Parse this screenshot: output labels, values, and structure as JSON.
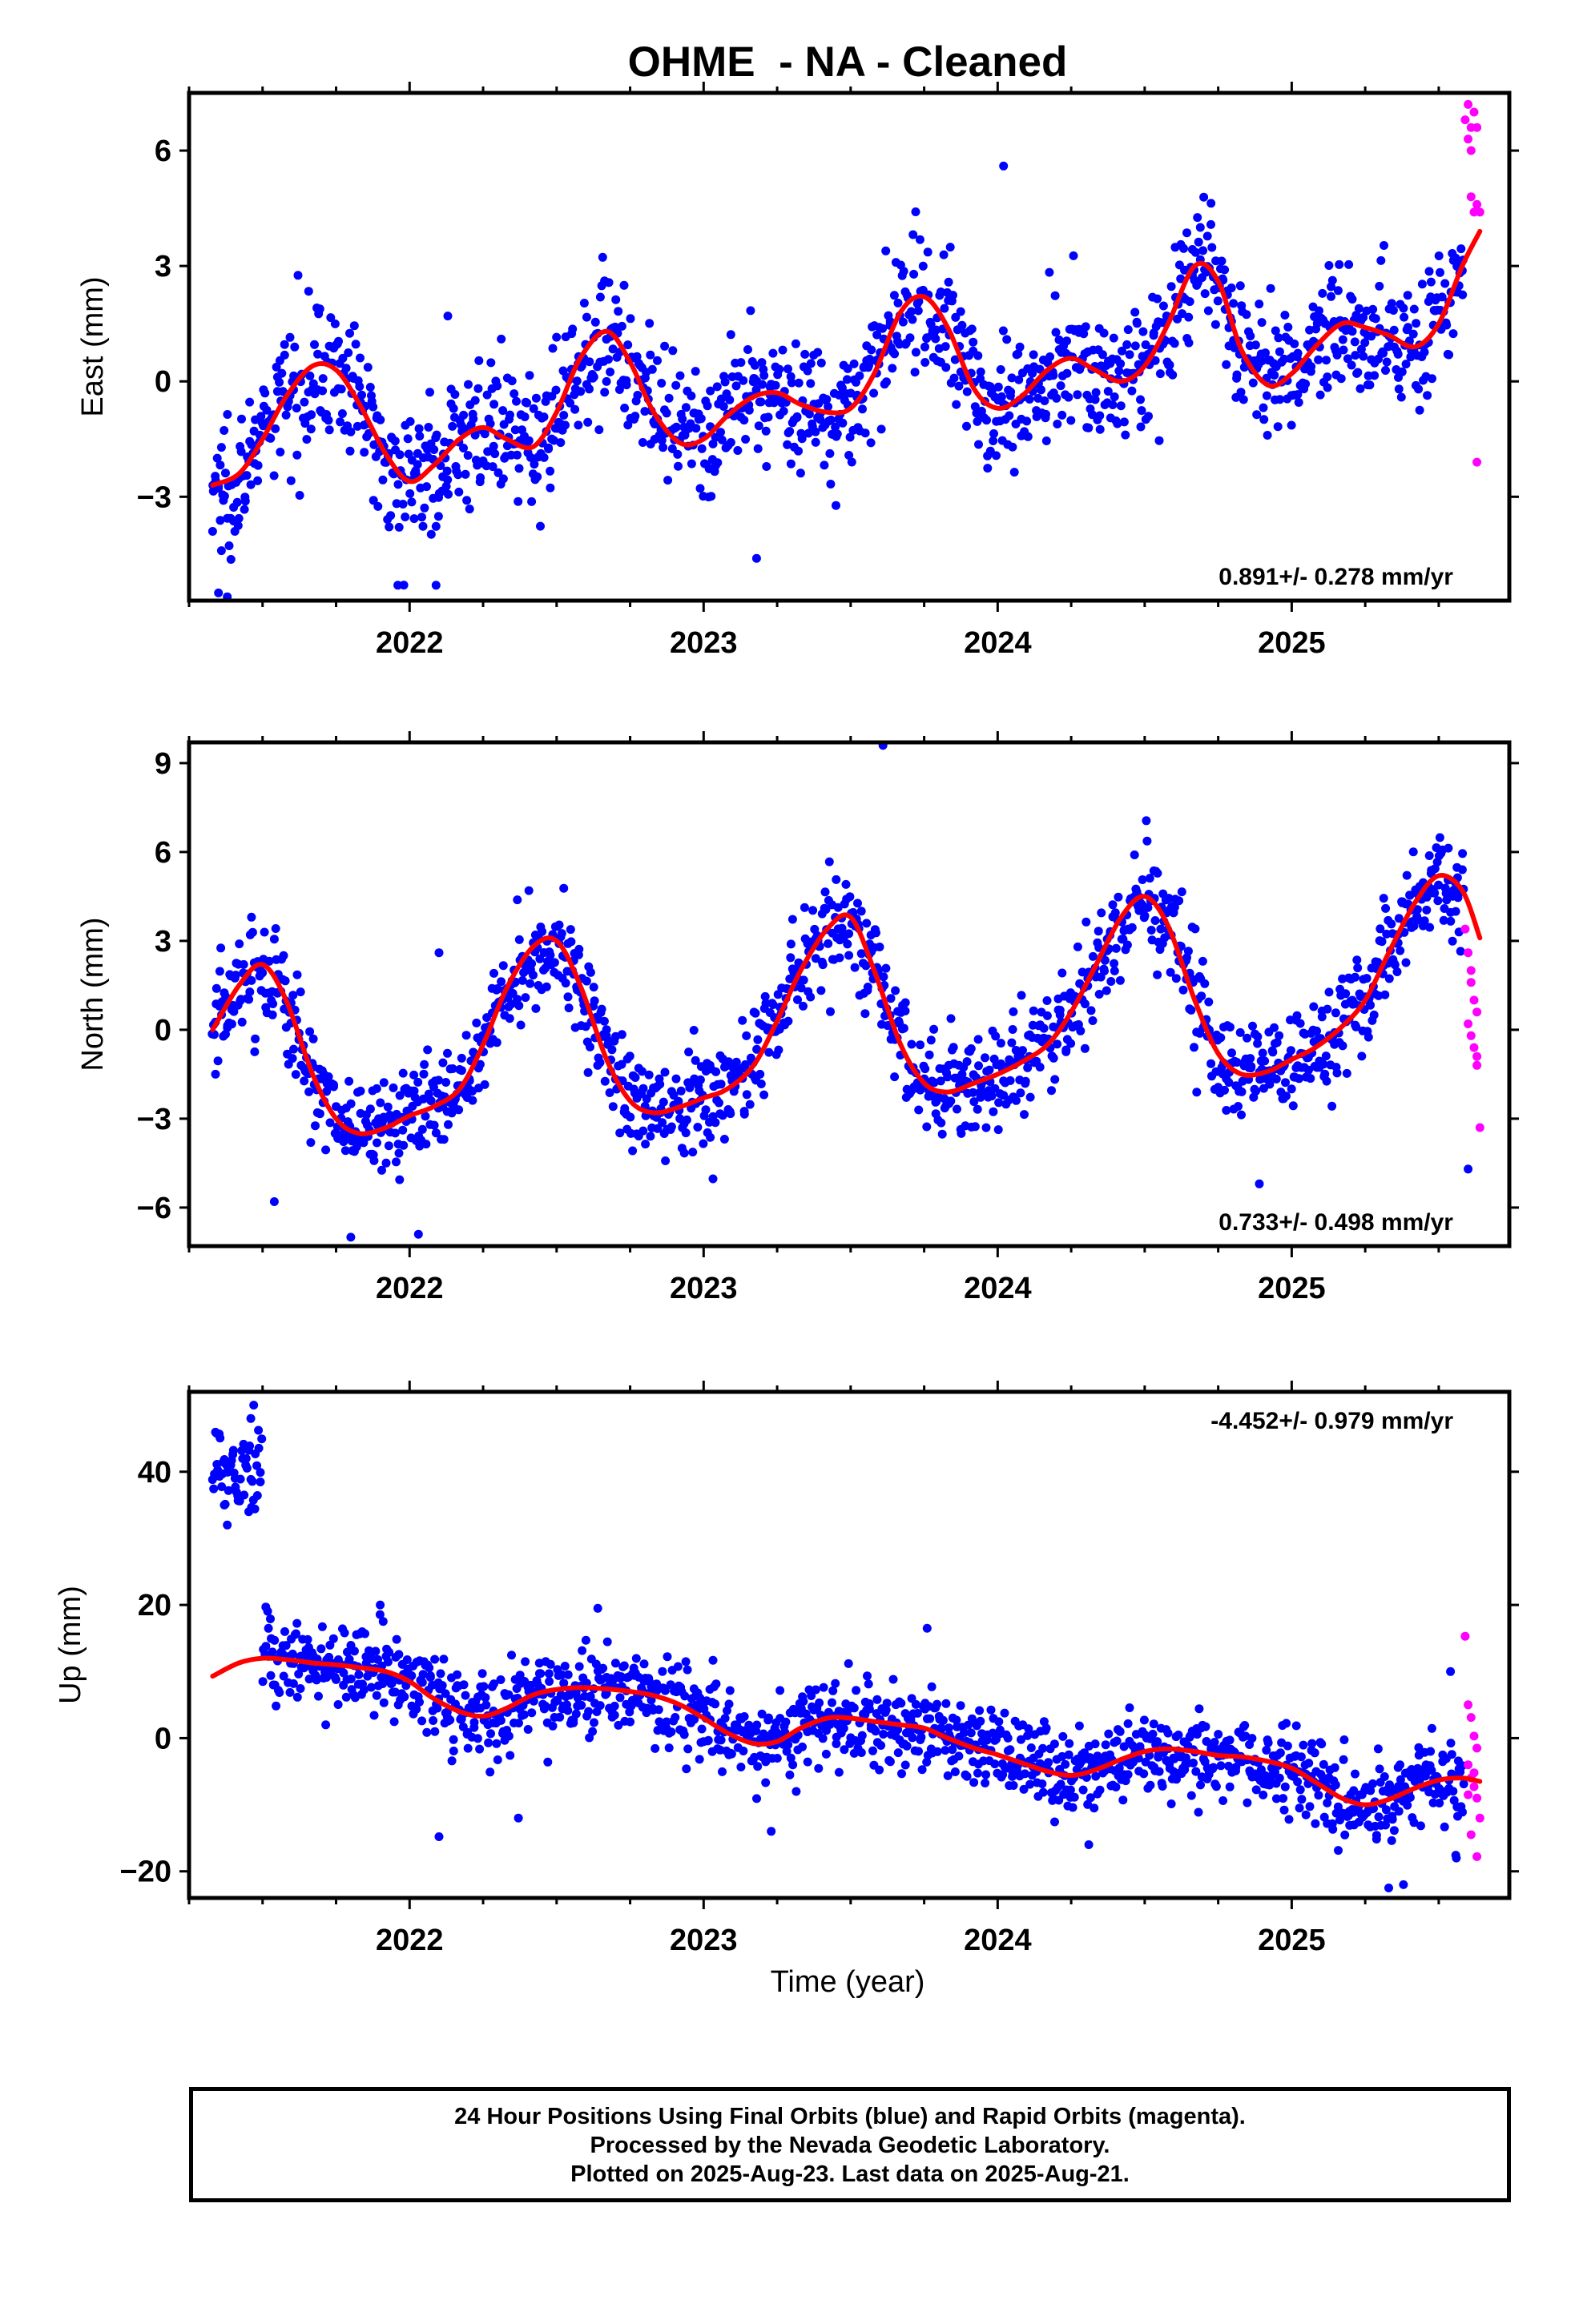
{
  "title": "OHME  - NA - Cleaned",
  "xlabel": "Time (year)",
  "footer": {
    "line1": "24 Hour Positions Using Final Orbits (blue) and Rapid Orbits (magenta).",
    "line2": "Processed by the Nevada Geodetic Laboratory.",
    "line3": "Plotted on 2025-Aug-23. Last data on 2025-Aug-21."
  },
  "colors": {
    "final": "#0000ff",
    "rapid": "#ff00ff",
    "model": "#ff0000",
    "frame": "#000000"
  },
  "chart_data": [
    {
      "type": "scatter",
      "component": "East",
      "ylabel": "East (mm)",
      "rate_text": "0.891+/- 0.278 mm/yr",
      "rate_position": "bottom-right",
      "xlim": [
        2021.25,
        2025.74
      ],
      "ylim": [
        -5.7,
        7.5
      ],
      "yticks": [
        -3,
        0,
        3,
        6
      ],
      "xticks": [
        2022,
        2023,
        2024,
        2025
      ],
      "scatter_noise": 0.85,
      "model": {
        "name": "",
        "x": [
          2021.33,
          2021.42,
          2021.5,
          2021.58,
          2021.67,
          2021.75,
          2021.83,
          2021.92,
          2022.0,
          2022.08,
          2022.17,
          2022.25,
          2022.33,
          2022.42,
          2022.5,
          2022.58,
          2022.67,
          2022.75,
          2022.83,
          2022.92,
          2023.0,
          2023.08,
          2023.17,
          2023.25,
          2023.33,
          2023.42,
          2023.5,
          2023.58,
          2023.67,
          2023.75,
          2023.83,
          2023.92,
          2024.0,
          2024.08,
          2024.17,
          2024.25,
          2024.33,
          2024.42,
          2024.5,
          2024.58,
          2024.67,
          2024.75,
          2024.83,
          2024.92,
          2025.0,
          2025.08,
          2025.17,
          2025.25,
          2025.33,
          2025.42,
          2025.5,
          2025.58,
          2025.64
        ],
        "y": [
          -2.7,
          -2.4,
          -1.5,
          -0.4,
          0.4,
          0.3,
          -0.6,
          -1.9,
          -2.6,
          -2.2,
          -1.5,
          -1.2,
          -1.5,
          -1.7,
          -0.8,
          0.6,
          1.3,
          0.5,
          -0.8,
          -1.6,
          -1.5,
          -0.9,
          -0.4,
          -0.3,
          -0.6,
          -0.8,
          -0.7,
          0.2,
          1.8,
          2.2,
          1.4,
          -0.2,
          -0.7,
          -0.4,
          0.3,
          0.6,
          0.3,
          0.0,
          0.4,
          1.5,
          3.0,
          2.6,
          0.8,
          -0.1,
          0.2,
          0.9,
          1.5,
          1.4,
          1.2,
          0.9,
          1.5,
          3.0,
          3.9
        ]
      },
      "outliers": [
        {
          "x": 2021.35,
          "y": -5.5
        },
        {
          "x": 2021.38,
          "y": -5.6
        },
        {
          "x": 2021.36,
          "y": -4.4
        },
        {
          "x": 2021.33,
          "y": -3.9
        },
        {
          "x": 2021.96,
          "y": -5.3
        },
        {
          "x": 2022.09,
          "y": -5.3
        },
        {
          "x": 2022.13,
          "y": 1.7
        },
        {
          "x": 2024.02,
          "y": 5.6
        },
        {
          "x": 2023.18,
          "y": -4.6
        }
      ],
      "rapid": {
        "x": [
          2025.59,
          2025.6,
          2025.61,
          2025.62,
          2025.63,
          2025.6,
          2025.61,
          2025.63,
          2025.62,
          2025.64,
          2025.61,
          2025.63
        ],
        "y": [
          6.8,
          7.2,
          6.6,
          7.0,
          6.6,
          6.3,
          4.8,
          4.6,
          4.4,
          4.4,
          6.0,
          -2.1
        ]
      }
    },
    {
      "type": "scatter",
      "component": "North",
      "ylabel": "North (mm)",
      "rate_text": "0.733+/- 0.498 mm/yr",
      "rate_position": "bottom-right",
      "xlim": [
        2021.25,
        2025.74
      ],
      "ylim": [
        -7.3,
        9.7
      ],
      "yticks": [
        -6,
        -3,
        0,
        3,
        6,
        9
      ],
      "xticks": [
        2022,
        2023,
        2024,
        2025
      ],
      "scatter_noise": 0.9,
      "model": {
        "name": "",
        "x": [
          2021.33,
          2021.42,
          2021.5,
          2021.58,
          2021.67,
          2021.75,
          2021.83,
          2021.92,
          2022.0,
          2022.08,
          2022.17,
          2022.25,
          2022.33,
          2022.42,
          2022.5,
          2022.58,
          2022.67,
          2022.75,
          2022.83,
          2022.92,
          2023.0,
          2023.08,
          2023.17,
          2023.25,
          2023.33,
          2023.42,
          2023.5,
          2023.58,
          2023.67,
          2023.75,
          2023.83,
          2023.92,
          2024.0,
          2024.08,
          2024.17,
          2024.25,
          2024.33,
          2024.42,
          2024.5,
          2024.58,
          2024.67,
          2024.75,
          2024.83,
          2024.92,
          2025.0,
          2025.08,
          2025.17,
          2025.25,
          2025.33,
          2025.42,
          2025.5,
          2025.58,
          2025.64
        ],
        "y": [
          0.0,
          1.5,
          2.2,
          1.0,
          -1.5,
          -3.0,
          -3.5,
          -3.3,
          -2.9,
          -2.6,
          -2.0,
          -0.5,
          1.4,
          2.8,
          3.0,
          1.5,
          -1.0,
          -2.4,
          -2.8,
          -2.6,
          -2.3,
          -2.0,
          -1.2,
          0.3,
          2.0,
          3.4,
          3.8,
          2.0,
          -0.5,
          -1.8,
          -2.1,
          -1.8,
          -1.5,
          -1.1,
          -0.5,
          0.6,
          2.1,
          3.8,
          4.5,
          3.5,
          1.0,
          -0.8,
          -1.5,
          -1.4,
          -1.0,
          -0.6,
          0.1,
          1.0,
          2.6,
          4.3,
          5.2,
          4.7,
          3.1
        ]
      },
      "outliers": [
        {
          "x": 2021.54,
          "y": -5.8
        },
        {
          "x": 2021.8,
          "y": -7.0
        },
        {
          "x": 2022.03,
          "y": -6.9
        },
        {
          "x": 2022.1,
          "y": 2.6
        },
        {
          "x": 2023.61,
          "y": 9.6
        },
        {
          "x": 2024.89,
          "y": -5.2
        },
        {
          "x": 2025.6,
          "y": -4.7
        },
        {
          "x": 2021.34,
          "y": -1.5
        }
      ],
      "rapid": {
        "x": [
          2025.59,
          2025.6,
          2025.61,
          2025.62,
          2025.63,
          2025.6,
          2025.61,
          2025.62,
          2025.63,
          2025.64,
          2025.61,
          2025.63
        ],
        "y": [
          3.4,
          2.6,
          1.6,
          1.0,
          0.6,
          0.2,
          -0.2,
          -0.6,
          -1.2,
          -3.3,
          2.0,
          -0.9
        ]
      }
    },
    {
      "type": "scatter",
      "component": "Up",
      "ylabel": "Up (mm)",
      "rate_text": "-4.452+/- 0.979 mm/yr",
      "rate_position": "top-right",
      "xlim": [
        2021.25,
        2025.74
      ],
      "ylim": [
        -24,
        52
      ],
      "yticks": [
        -20,
        0,
        20,
        40
      ],
      "xticks": [
        2022,
        2023,
        2024,
        2025
      ],
      "scatter_noise": 3.2,
      "model": {
        "name": "",
        "x": [
          2021.33,
          2021.42,
          2021.5,
          2021.58,
          2021.67,
          2021.75,
          2021.83,
          2021.92,
          2022.0,
          2022.08,
          2022.17,
          2022.25,
          2022.33,
          2022.42,
          2022.5,
          2022.58,
          2022.67,
          2022.75,
          2022.83,
          2022.92,
          2023.0,
          2023.08,
          2023.17,
          2023.25,
          2023.33,
          2023.42,
          2023.5,
          2023.58,
          2023.67,
          2023.75,
          2023.83,
          2023.92,
          2024.0,
          2024.08,
          2024.17,
          2024.25,
          2024.33,
          2024.42,
          2024.5,
          2024.58,
          2024.67,
          2024.75,
          2024.83,
          2024.92,
          2025.0,
          2025.08,
          2025.17,
          2025.25,
          2025.33,
          2025.42,
          2025.5,
          2025.58,
          2025.64
        ],
        "y": [
          9.3,
          11.3,
          12.0,
          11.8,
          11.3,
          11.0,
          10.6,
          10.0,
          8.5,
          6.0,
          4.0,
          3.3,
          4.5,
          6.5,
          7.3,
          7.6,
          7.4,
          7.0,
          6.4,
          5.0,
          3.0,
          0.8,
          -0.8,
          -0.5,
          1.5,
          3.0,
          3.0,
          2.5,
          2.0,
          1.5,
          0.0,
          -1.5,
          -2.5,
          -3.7,
          -5.0,
          -5.6,
          -4.8,
          -3.2,
          -2.0,
          -1.6,
          -2.0,
          -2.6,
          -2.8,
          -3.5,
          -4.5,
          -6.6,
          -9.0,
          -10.0,
          -9.2,
          -7.5,
          -6.3,
          -6.0,
          -6.5
        ]
      },
      "outliers": [
        {
          "x": 2021.38,
          "y": 32
        },
        {
          "x": 2021.37,
          "y": 35
        },
        {
          "x": 2021.47,
          "y": 50
        },
        {
          "x": 2021.46,
          "y": 48
        },
        {
          "x": 2021.9,
          "y": 20
        },
        {
          "x": 2022.1,
          "y": -14.8
        },
        {
          "x": 2022.37,
          "y": -12
        },
        {
          "x": 2022.64,
          "y": 19.5
        },
        {
          "x": 2023.76,
          "y": 16.5
        },
        {
          "x": 2023.23,
          "y": -14
        },
        {
          "x": 2024.31,
          "y": -16
        },
        {
          "x": 2025.33,
          "y": -22.5
        },
        {
          "x": 2025.38,
          "y": -22
        },
        {
          "x": 2025.54,
          "y": 10
        },
        {
          "x": 2025.56,
          "y": -18
        }
      ],
      "rapid": {
        "x": [
          2025.59,
          2025.6,
          2025.61,
          2025.62,
          2025.63,
          2025.6,
          2025.61,
          2025.62,
          2025.63,
          2025.64,
          2025.61,
          2025.63,
          2025.6,
          2025.62
        ],
        "y": [
          15.3,
          5.0,
          3.1,
          0.3,
          -1.5,
          -4.0,
          -6.0,
          -7.3,
          -9.0,
          -12.0,
          -14.5,
          -17.8,
          -8.5,
          -5.2
        ]
      }
    }
  ]
}
